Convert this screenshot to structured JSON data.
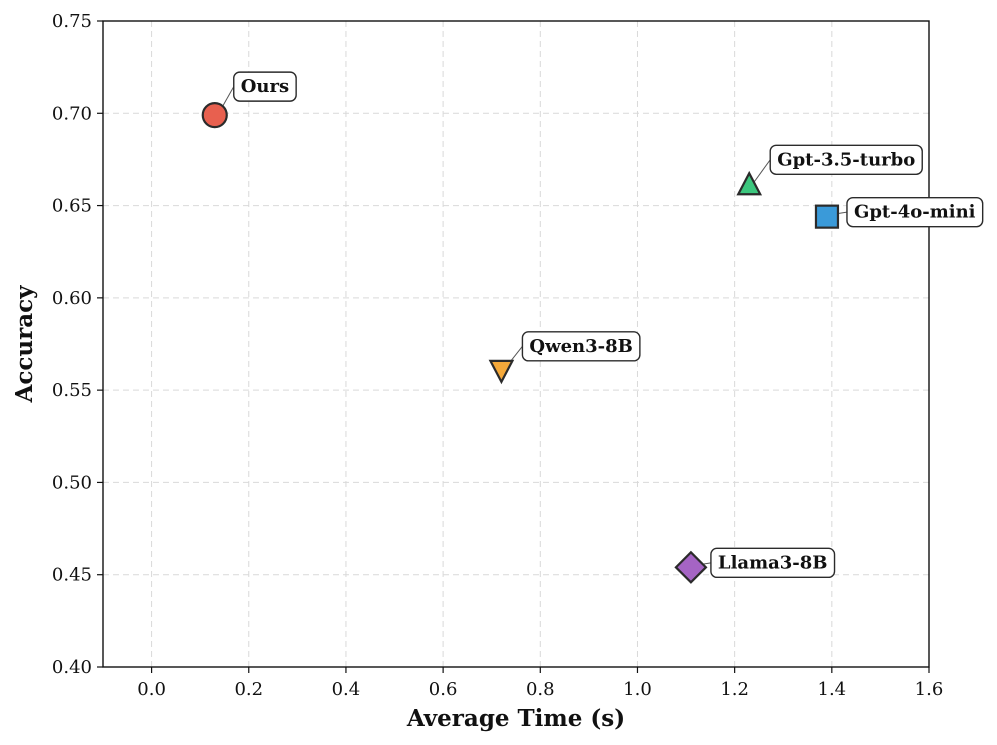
{
  "chart_data": {
    "type": "scatter",
    "title": "",
    "xlabel": "Average Time (s)",
    "ylabel": "Accuracy",
    "xlim": [
      -0.1,
      1.6
    ],
    "ylim": [
      0.4,
      0.75
    ],
    "xticks": [
      0.0,
      0.2,
      0.4,
      0.6,
      0.8,
      1.0,
      1.2,
      1.4,
      1.6
    ],
    "xtick_labels": [
      "0.0",
      "0.2",
      "0.4",
      "0.6",
      "0.8",
      "1.0",
      "1.2",
      "1.4",
      "1.6"
    ],
    "yticks": [
      0.4,
      0.45,
      0.5,
      0.55,
      0.6,
      0.65,
      0.7,
      0.75
    ],
    "ytick_labels": [
      "0.40",
      "0.45",
      "0.50",
      "0.55",
      "0.60",
      "0.65",
      "0.70",
      "0.75"
    ],
    "grid": true,
    "points": [
      {
        "name": "Ours",
        "x": 0.13,
        "y": 0.699,
        "marker": "circle",
        "color": "#e8604f"
      },
      {
        "name": "Gpt-3.5-turbo",
        "x": 1.23,
        "y": 0.661,
        "marker": "triangle-up",
        "color": "#3cc77e"
      },
      {
        "name": "Gpt-4o-mini",
        "x": 1.39,
        "y": 0.644,
        "marker": "square",
        "color": "#3a9ad9"
      },
      {
        "name": "Qwen3-8B",
        "x": 0.72,
        "y": 0.561,
        "marker": "triangle-down",
        "color": "#f5a93a"
      },
      {
        "name": "Llama3-8B",
        "x": 1.11,
        "y": 0.454,
        "marker": "diamond",
        "color": "#a564c4"
      }
    ]
  }
}
